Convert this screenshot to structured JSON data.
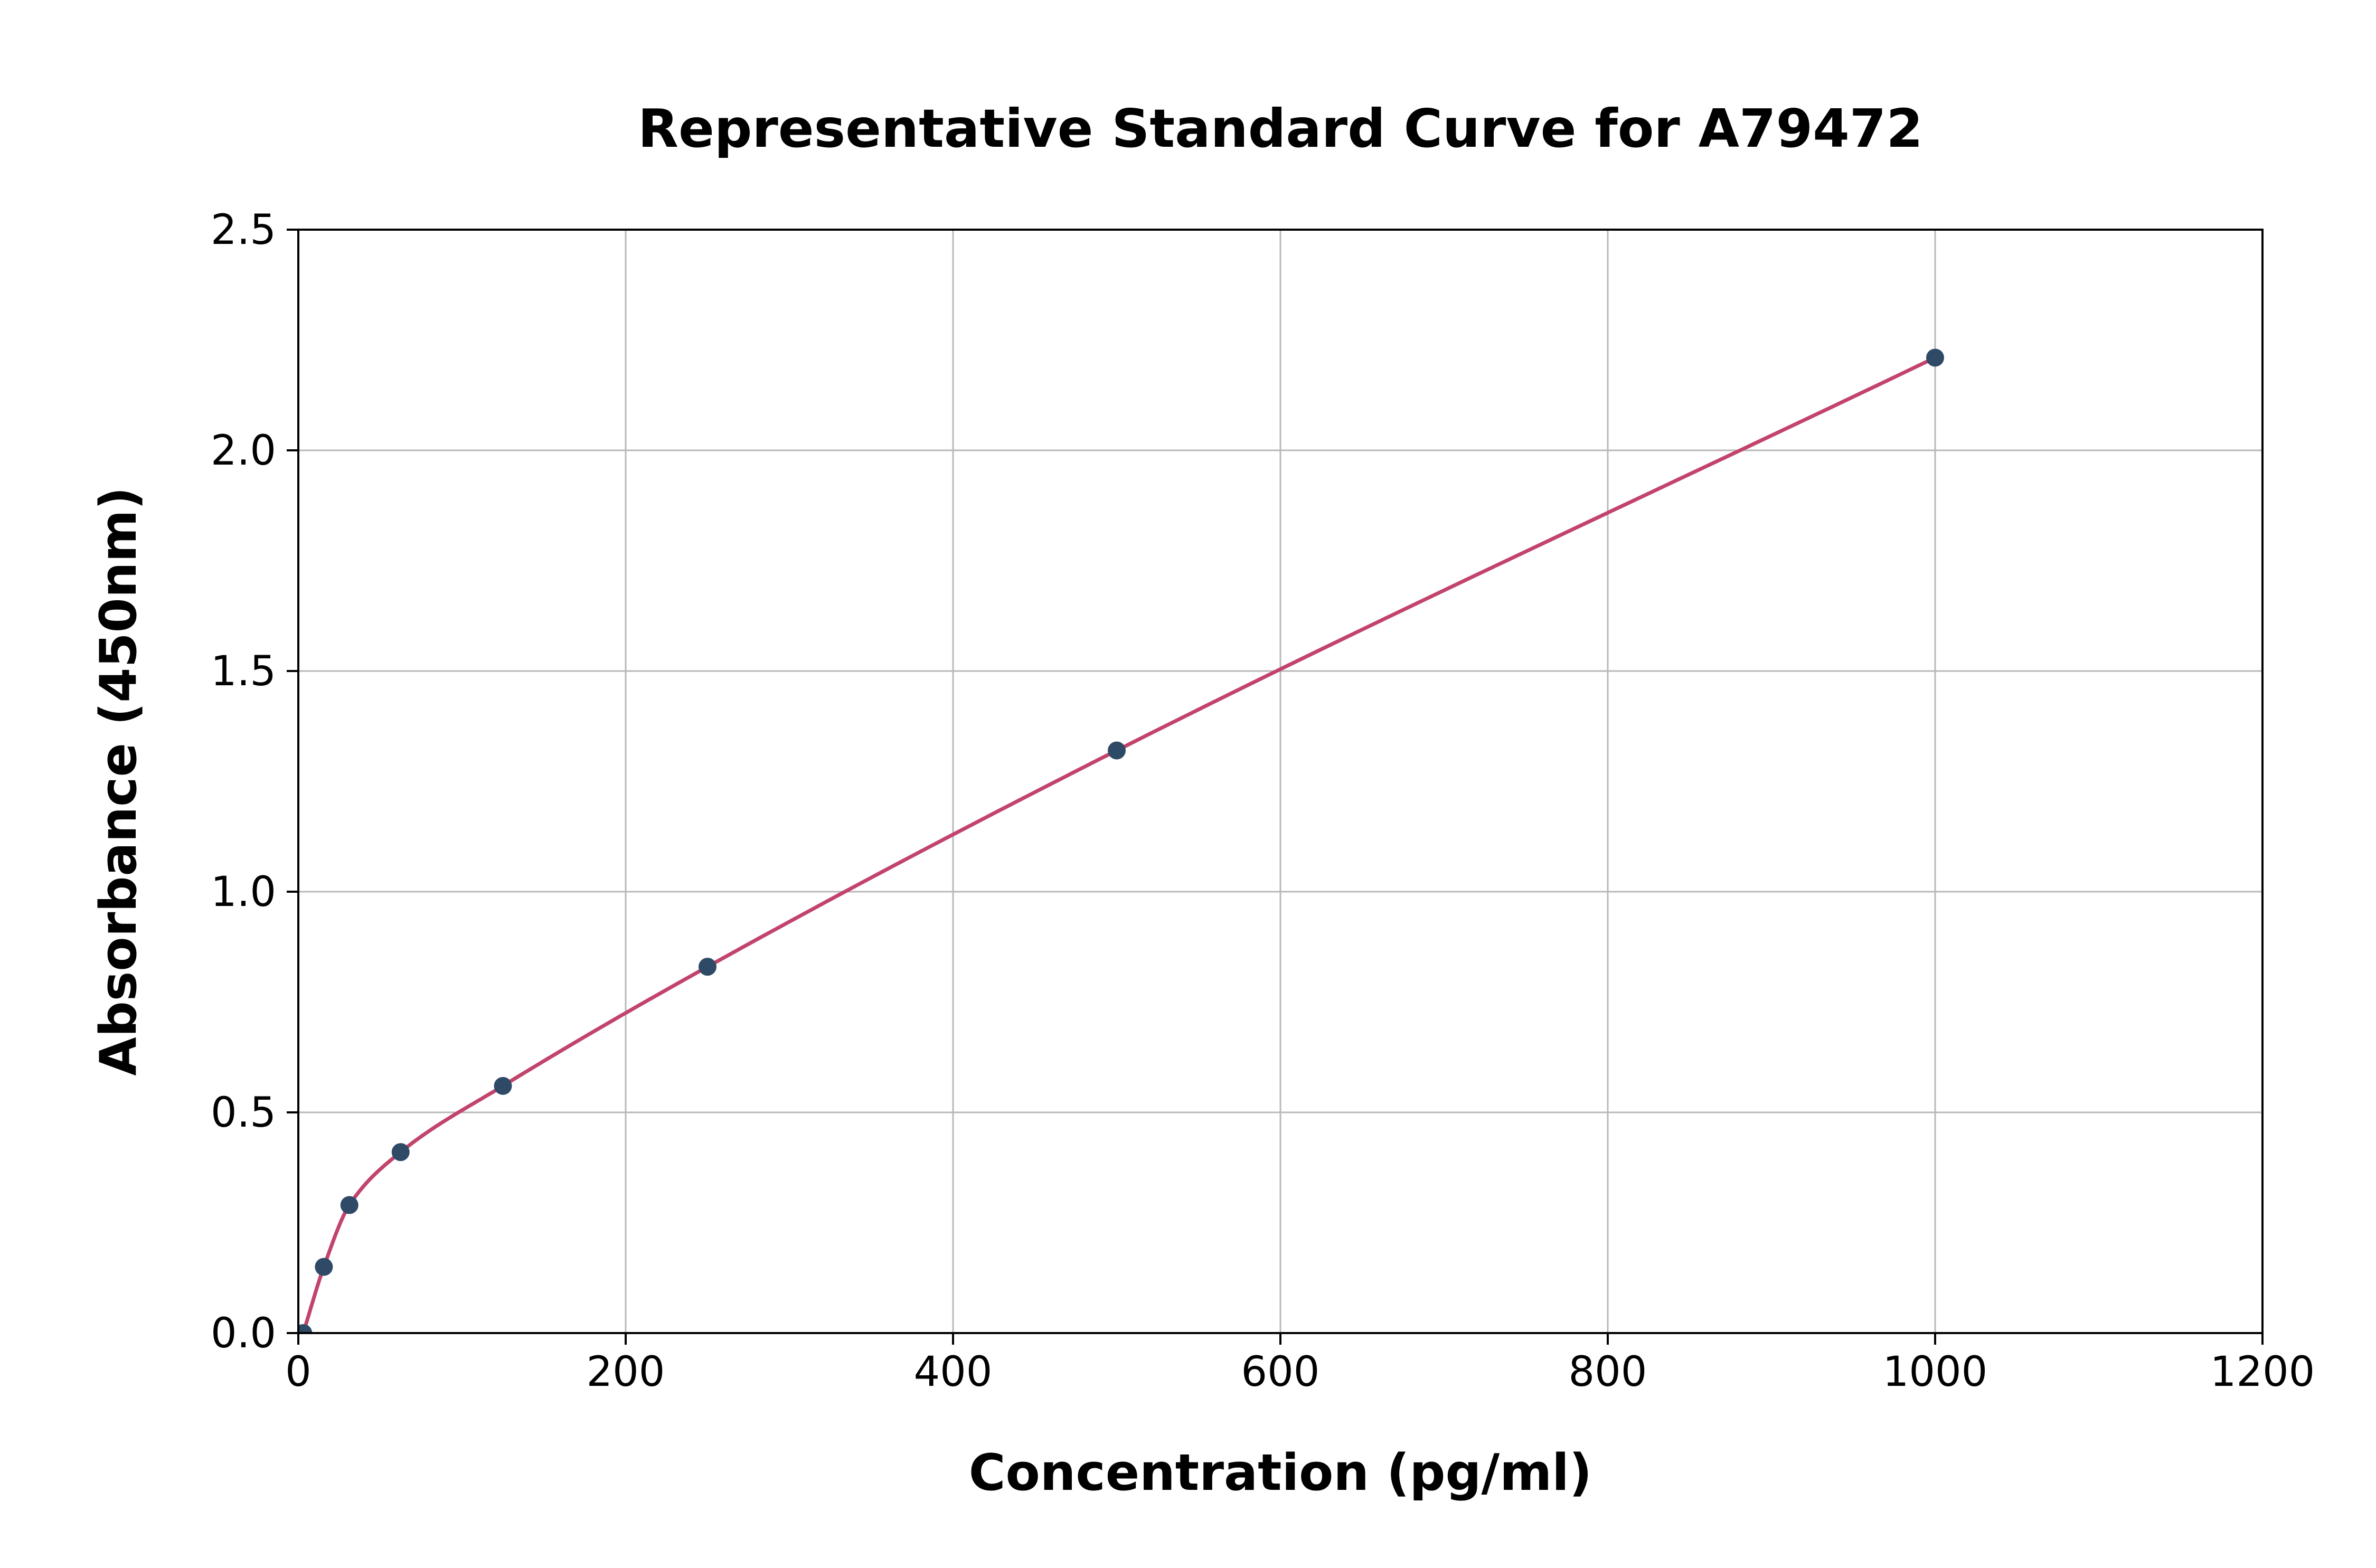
{
  "page": {
    "background": "#ffffff"
  },
  "chart_data": {
    "type": "scatter",
    "title": "Representative Standard Curve for A79472",
    "xlabel": "Concentration (pg/ml)",
    "ylabel": "Absorbance (450nm)",
    "xlim": [
      0,
      1200
    ],
    "ylim": [
      0,
      2.5
    ],
    "x_ticks": [
      0,
      200,
      400,
      600,
      800,
      1000,
      1200
    ],
    "x_tick_labels": [
      "0",
      "200",
      "400",
      "600",
      "800",
      "1000",
      "1200"
    ],
    "y_ticks": [
      0,
      0.5,
      1.0,
      1.5,
      2.0,
      2.5
    ],
    "y_tick_labels": [
      "0.0",
      "0.5",
      "1.0",
      "1.5",
      "2.0",
      "2.5"
    ],
    "grid": true,
    "legend_position": "none",
    "points": [
      {
        "x": 3,
        "y": 0.0
      },
      {
        "x": 15.6,
        "y": 0.15
      },
      {
        "x": 31.2,
        "y": 0.29
      },
      {
        "x": 62.5,
        "y": 0.41
      },
      {
        "x": 125,
        "y": 0.56
      },
      {
        "x": 250,
        "y": 0.83
      },
      {
        "x": 500,
        "y": 1.32
      },
      {
        "x": 1000,
        "y": 2.21
      }
    ],
    "fit_curve": "smooth curve through standard points",
    "point_color": "#2e4a66",
    "curve_color": "#c2436b",
    "grid_color": "#b8b8b8",
    "axis_color": "#000000"
  }
}
